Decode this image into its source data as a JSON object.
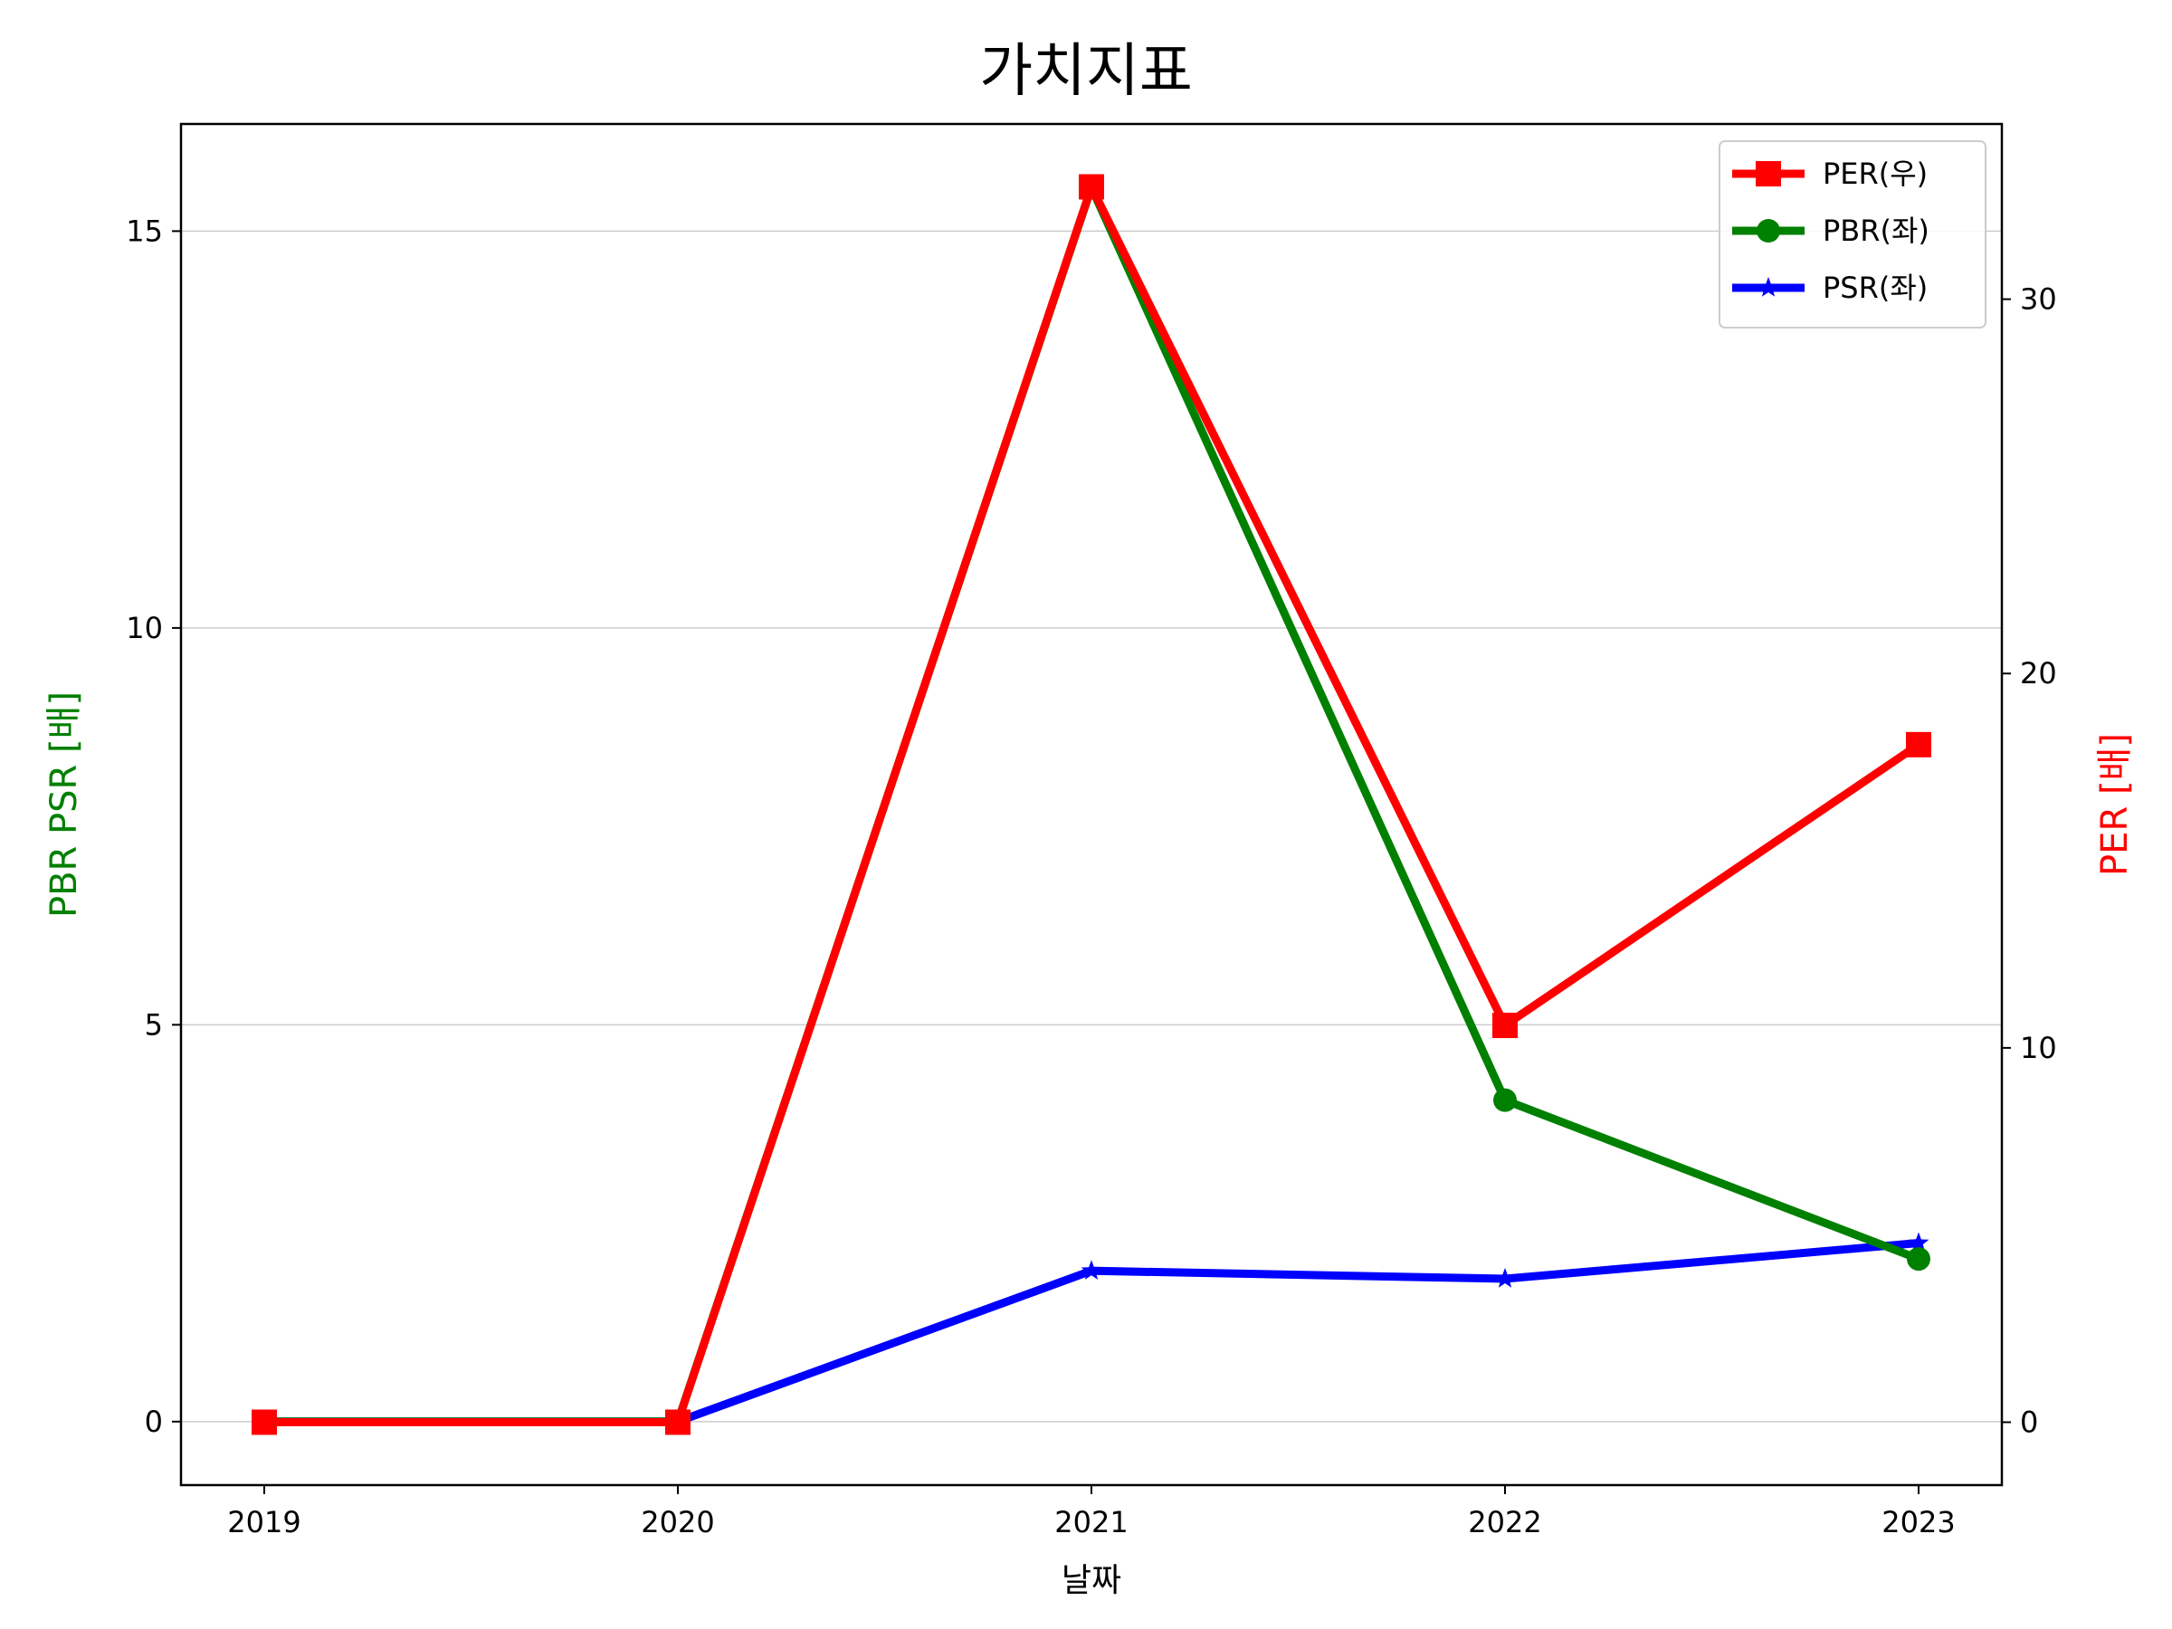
{
  "chart_data": {
    "type": "line",
    "title": "가치지표",
    "xlabel": "날짜",
    "ylabel_left": "PBR PSR [배]",
    "ylabel_right": "PER [배]",
    "categories": [
      "2019",
      "2020",
      "2021",
      "2022",
      "2023"
    ],
    "ylim_left": [
      -0.8,
      16.35
    ],
    "ylim_right": [
      -1.68,
      34.68
    ],
    "yticks_left": [
      0,
      5,
      10,
      15
    ],
    "yticks_right": [
      0,
      10,
      20,
      30
    ],
    "grid": "horizontal (left axis)",
    "legend_position": "top-right",
    "series": [
      {
        "name": "PER(우)",
        "axis": "right",
        "marker": "square",
        "color": "#ff0000",
        "values": [
          0,
          0,
          33.0,
          10.6,
          18.1
        ]
      },
      {
        "name": "PBR(좌)",
        "axis": "left",
        "marker": "circle",
        "color": "#008000",
        "values": [
          0,
          0,
          15.55,
          4.05,
          2.05
        ]
      },
      {
        "name": "PSR(좌)",
        "axis": "left",
        "marker": "star",
        "color": "#0000ff",
        "values": [
          0,
          0,
          1.9,
          1.8,
          2.25
        ]
      }
    ],
    "ylabel_left_color": "#008000",
    "ylabel_right_color": "#ff0000"
  }
}
